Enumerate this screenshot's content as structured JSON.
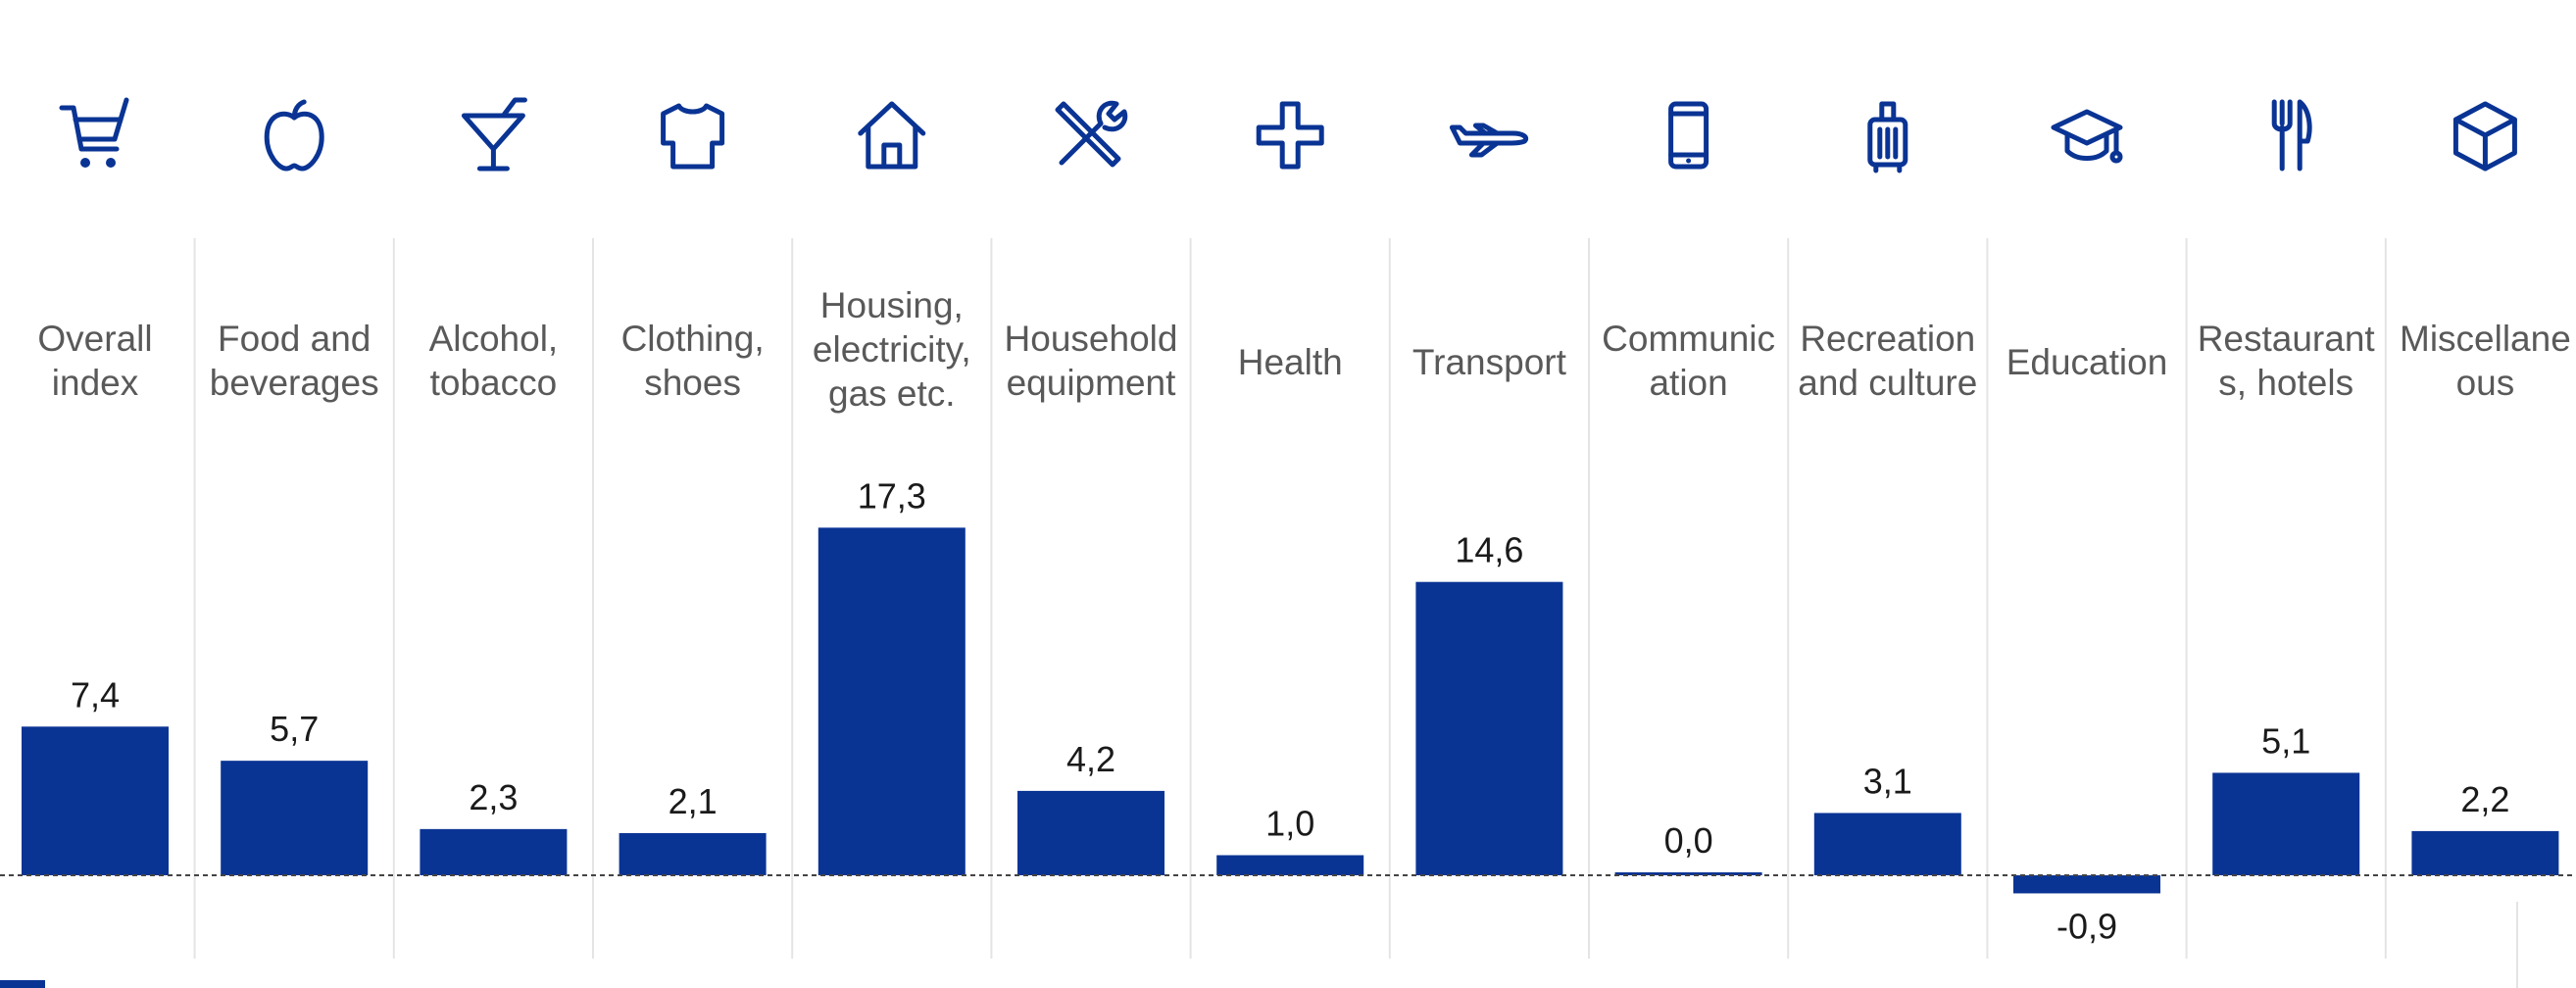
{
  "chart_data": {
    "type": "bar",
    "categories": [
      {
        "lines": [
          "Overall",
          "index"
        ],
        "icon": "shopping-cart-icon"
      },
      {
        "lines": [
          "Food and",
          "beverages"
        ],
        "icon": "apple-icon"
      },
      {
        "lines": [
          "Alcohol,",
          "tobacco"
        ],
        "icon": "cocktail-glass-icon"
      },
      {
        "lines": [
          "Clothing,",
          "shoes"
        ],
        "icon": "shirt-icon"
      },
      {
        "lines": [
          "Housing,",
          "electricity,",
          "gas etc."
        ],
        "icon": "house-icon"
      },
      {
        "lines": [
          "Household",
          "equipment"
        ],
        "icon": "tools-icon"
      },
      {
        "lines": [
          "Health"
        ],
        "icon": "medical-cross-icon"
      },
      {
        "lines": [
          "Transport"
        ],
        "icon": "airplane-icon"
      },
      {
        "lines": [
          "Communic",
          "ation"
        ],
        "icon": "mobile-phone-icon"
      },
      {
        "lines": [
          "Recreation",
          "and culture"
        ],
        "icon": "suitcase-icon"
      },
      {
        "lines": [
          "Education"
        ],
        "icon": "graduation-cap-icon"
      },
      {
        "lines": [
          "Restaurant",
          "s, hotels"
        ],
        "icon": "fork-knife-icon"
      },
      {
        "lines": [
          "Miscellane",
          "ous"
        ],
        "icon": "box-icon"
      }
    ],
    "values": [
      7.4,
      5.7,
      2.3,
      2.1,
      17.3,
      4.2,
      1.0,
      14.6,
      0.0,
      3.1,
      -0.9,
      5.1,
      2.2
    ],
    "value_labels": [
      "7,4",
      "5,7",
      "2,3",
      "2,1",
      "17,3",
      "4,2",
      "1,0",
      "14,6",
      "0,0",
      "3,1",
      "-0,9",
      "5,1",
      "2,2"
    ],
    "title": "",
    "xlabel": "",
    "ylabel": "",
    "grid": false,
    "bar_color": "#0a3494",
    "icon_color": "#0a3494",
    "label_color": "#595959"
  }
}
